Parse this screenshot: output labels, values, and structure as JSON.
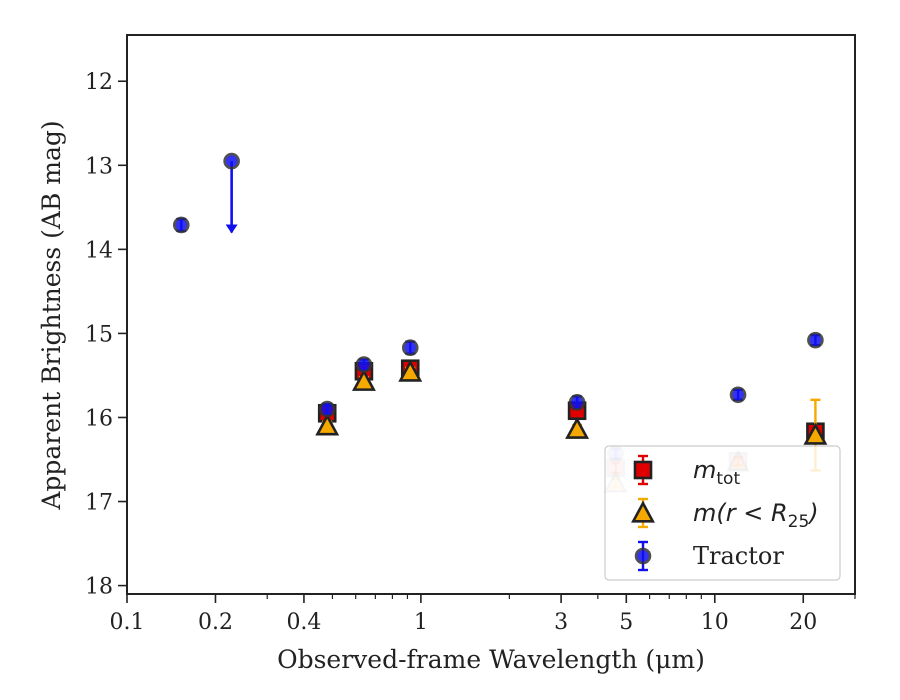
{
  "chart_data": {
    "type": "scatter",
    "title": "",
    "xlabel": "Observed-frame Wavelength (μm)",
    "ylabel": "Apparent Brightness (AB mag)",
    "xscale": "log",
    "xlim": [
      0.1,
      30
    ],
    "ylim": [
      18.1,
      11.45
    ],
    "y_inverted": true,
    "x_ticks": [
      {
        "value": 0.1,
        "label": "0.1"
      },
      {
        "value": 0.2,
        "label": "0.2"
      },
      {
        "value": 0.4,
        "label": "0.4"
      },
      {
        "value": 1,
        "label": "1"
      },
      {
        "value": 3,
        "label": "3"
      },
      {
        "value": 5,
        "label": "5"
      },
      {
        "value": 10,
        "label": "10"
      },
      {
        "value": 20,
        "label": "20"
      }
    ],
    "y_ticks": [
      {
        "value": 12,
        "label": "12"
      },
      {
        "value": 13,
        "label": "13"
      },
      {
        "value": 14,
        "label": "14"
      },
      {
        "value": 15,
        "label": "15"
      },
      {
        "value": 16,
        "label": "16"
      },
      {
        "value": 17,
        "label": "17"
      },
      {
        "value": 18,
        "label": "18"
      }
    ],
    "legend_placement": "lower-right",
    "series": [
      {
        "name": "m_tot",
        "marker": "square",
        "color": "#e00000",
        "edge_color": "#222222",
        "error_color": "#e00000",
        "points": [
          {
            "x": 0.48,
            "y": 15.95,
            "err": 0.05
          },
          {
            "x": 0.64,
            "y": 15.45,
            "err": 0.05
          },
          {
            "x": 0.92,
            "y": 15.42,
            "err": 0.05
          },
          {
            "x": 3.4,
            "y": 15.92,
            "err": 0.06
          },
          {
            "x": 4.6,
            "y": 16.6,
            "err": 0.06,
            "faded": true
          },
          {
            "x": 12.0,
            "y": 16.52,
            "err": 0.05,
            "faded": true
          },
          {
            "x": 22.0,
            "y": 16.17,
            "err": 0.06
          }
        ]
      },
      {
        "name": "m(r < R_25)",
        "marker": "triangle",
        "color": "#f5a800",
        "edge_color": "#222222",
        "error_color": "#f5a800",
        "points": [
          {
            "x": 0.48,
            "y": 16.1,
            "err": 0.05
          },
          {
            "x": 0.64,
            "y": 15.57,
            "err": 0.05
          },
          {
            "x": 0.92,
            "y": 15.46,
            "err": 0.05
          },
          {
            "x": 3.4,
            "y": 16.14,
            "err": 0.05
          },
          {
            "x": 4.6,
            "y": 16.78,
            "err": 0.05,
            "faded": true
          },
          {
            "x": 12.0,
            "y": 16.53,
            "err": 0.05,
            "faded": true
          },
          {
            "x": 22.0,
            "y": 16.21,
            "err": 0.42
          }
        ]
      },
      {
        "name": "Tractor",
        "marker": "circle",
        "color": "#1010ee",
        "edge_color": "#333333",
        "error_color": "#1010ee",
        "points": [
          {
            "x": 0.153,
            "y": 13.71,
            "err": 0.07
          },
          {
            "x": 0.227,
            "y": 12.95,
            "err": 0,
            "upper_limit_to": 13.8
          },
          {
            "x": 0.48,
            "y": 15.9,
            "err": 0.06
          },
          {
            "x": 0.64,
            "y": 15.37,
            "err": 0.06
          },
          {
            "x": 0.92,
            "y": 15.17,
            "err": 0.07
          },
          {
            "x": 3.4,
            "y": 15.82,
            "err": 0.07
          },
          {
            "x": 4.6,
            "y": 16.43,
            "err": 0.06,
            "faded": true
          },
          {
            "x": 12.0,
            "y": 15.73,
            "err": 0.06
          },
          {
            "x": 22.0,
            "y": 15.08,
            "err": 0.06
          }
        ]
      }
    ]
  }
}
